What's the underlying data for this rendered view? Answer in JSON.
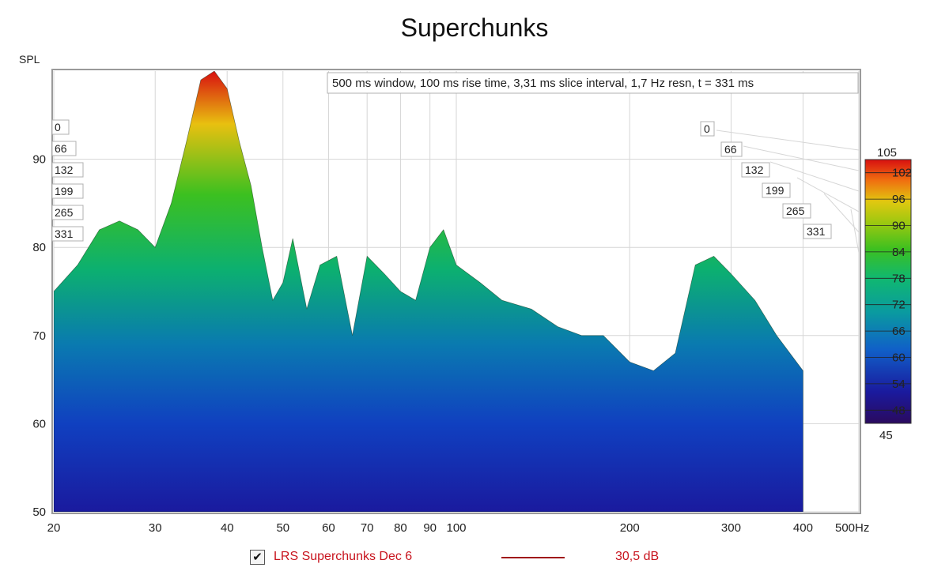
{
  "chart_data": {
    "type": "area",
    "title": "Superchunks",
    "ylabel": "SPL",
    "xunit": "Hz",
    "annotation": "500 ms window, 100 ms rise time, 3,31 ms slice interval, 1,7 Hz resn, t = 331 ms",
    "xscale": "log",
    "xlim": [
      20,
      500
    ],
    "ylim": [
      50,
      100
    ],
    "x_ticks": [
      "20",
      "30",
      "40",
      "50",
      "60",
      "70",
      "80",
      "90",
      "100",
      "200",
      "300",
      "400",
      "500Hz"
    ],
    "x_tick_values": [
      20,
      30,
      40,
      50,
      60,
      70,
      80,
      90,
      100,
      200,
      300,
      400,
      500
    ],
    "y_ticks": [
      50,
      60,
      70,
      80,
      90
    ],
    "time_axis_ms": [
      "0",
      "66",
      "132",
      "199",
      "265",
      "331"
    ],
    "colorbar": {
      "min": 45,
      "max": 105,
      "ticks": [
        48,
        54,
        60,
        66,
        72,
        78,
        84,
        90,
        96,
        102
      ],
      "colors": [
        "#2a0a5e",
        "#1a1a9e",
        "#1040c0",
        "#0a7ab0",
        "#08a890",
        "#12b860",
        "#3cc020",
        "#9cc810",
        "#e0c810",
        "#f07010",
        "#d81010"
      ]
    },
    "series": [
      {
        "name": "LRS Superchunks Dec 6",
        "color": "#a0141a",
        "x": [
          20,
          22,
          24,
          26,
          28,
          30,
          32,
          34,
          36,
          38,
          40,
          42,
          44,
          46,
          48,
          50,
          52,
          55,
          58,
          62,
          66,
          70,
          75,
          80,
          85,
          90,
          95,
          100,
          110,
          120,
          135,
          150,
          165,
          180,
          200,
          220,
          240,
          260,
          280,
          300,
          330,
          360,
          400
        ],
        "values": [
          75,
          78,
          82,
          83,
          82,
          80,
          85,
          92,
          99,
          100,
          98,
          92,
          87,
          80,
          74,
          76,
          81,
          73,
          78,
          79,
          70,
          79,
          77,
          75,
          74,
          80,
          82,
          78,
          76,
          74,
          73,
          71,
          70,
          70,
          67,
          66,
          68,
          78,
          79,
          77,
          74,
          70,
          66
        ]
      }
    ],
    "legend": {
      "checked": true,
      "offset": "30,5 dB"
    }
  }
}
